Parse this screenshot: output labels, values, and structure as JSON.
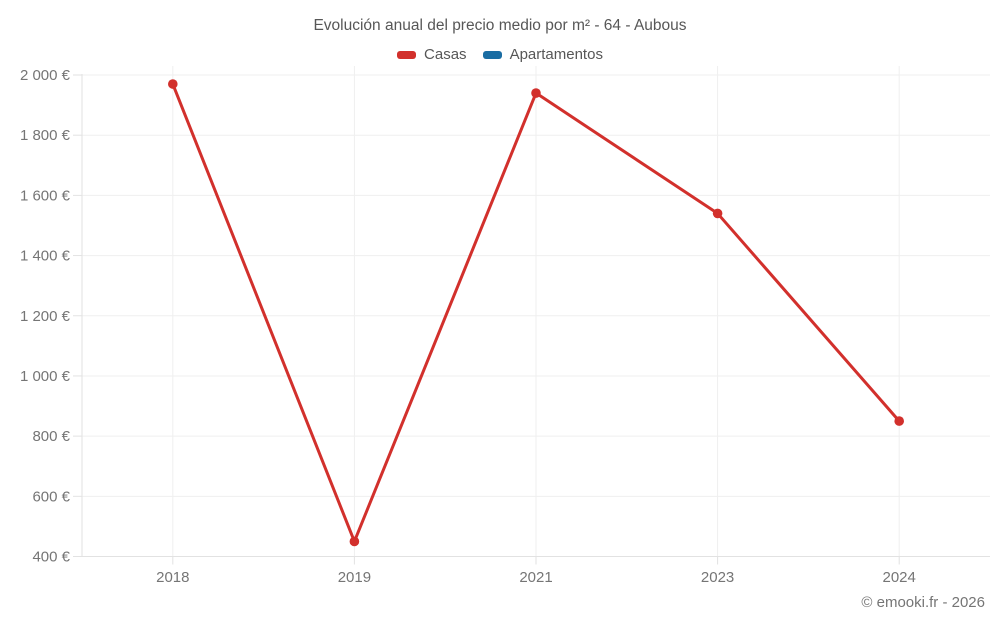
{
  "page": {
    "title": "Evolución anual del precio medio por m² - 64 - Aubous",
    "footer": "© emooki.fr - 2026"
  },
  "colors": {
    "casas": "#d2302c",
    "apartamentos": "#1a6da3",
    "grid": "#efefef",
    "axis": "#e2e2e2",
    "tick_label": "#757575",
    "title_text": "#575757"
  },
  "legend": [
    {
      "label": "Casas",
      "color": "#d2302c"
    },
    {
      "label": "Apartamentos",
      "color": "#1a6da3"
    }
  ],
  "chart_data": {
    "type": "line",
    "title": "Evolución anual del precio medio por m² - 64 - Aubous",
    "categories": [
      "2018",
      "2019",
      "2021",
      "2023",
      "2024"
    ],
    "series": [
      {
        "name": "Casas",
        "color": "#d2302c",
        "values": [
          1970,
          450,
          1940,
          1540,
          850
        ]
      },
      {
        "name": "Apartamentos",
        "color": "#1a6da3",
        "values": []
      }
    ],
    "xlabel": "",
    "ylabel": "€",
    "ylim": [
      400,
      2000
    ],
    "ytick_step": 200,
    "ytick_suffix": " €",
    "grid": true,
    "legend_position": "top",
    "annotations": [
      "© emooki.fr - 2026"
    ]
  }
}
